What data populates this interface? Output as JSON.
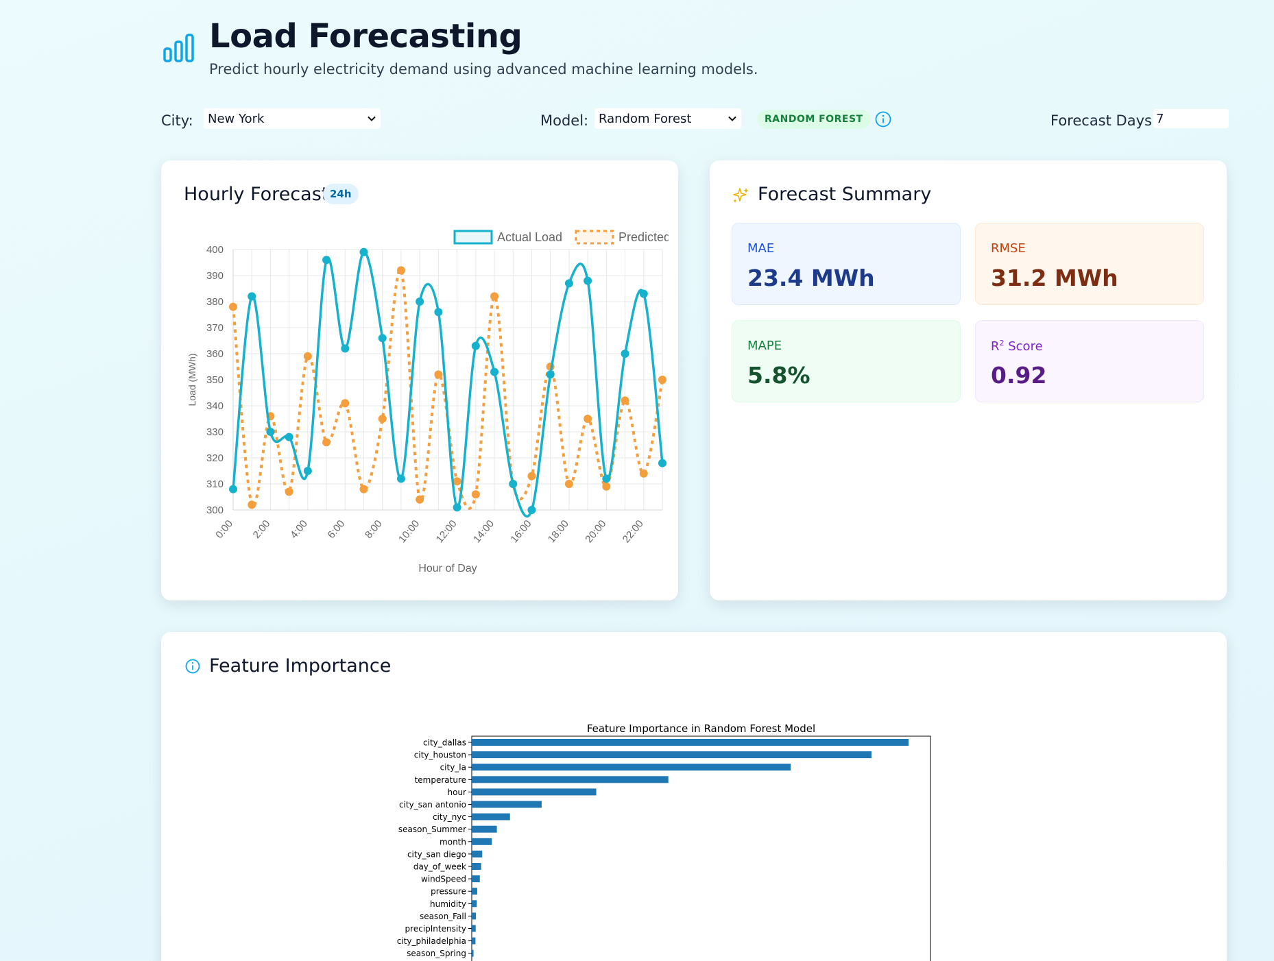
{
  "app": {
    "title": "Load Forecasting",
    "subtitle": "Predict hourly electricity demand using advanced machine learning models."
  },
  "controls": {
    "city_label": "City:",
    "city_value": "New York",
    "model_label": "Model:",
    "model_value": "Random Forest",
    "model_badge": "RANDOM FOREST",
    "days_label": "Forecast Days:",
    "days_value": "7"
  },
  "hourly": {
    "title": "Hourly Forecast",
    "badge": "24h"
  },
  "summary": {
    "title": "Forecast Summary",
    "metrics": [
      {
        "label": "MAE",
        "value": "23.4 MWh"
      },
      {
        "label": "RMSE",
        "value": "31.2 MWh"
      },
      {
        "label": "MAPE",
        "value": "5.8%"
      },
      {
        "label_base": "R",
        "label_sup": "2",
        "label_rest": " Score",
        "value": "0.92"
      }
    ]
  },
  "feature_section": {
    "title": "Feature Importance"
  },
  "colors": {
    "actual": "#16b1cc",
    "predicted": "#f59e3d",
    "bar": "#1f77b4",
    "accent": "#0ea5e9"
  },
  "icons": [
    "bar-chart-logo-icon",
    "chevron-down-icon",
    "info-icon",
    "sparkles-icon",
    "info-circle-icon"
  ],
  "chart_data": [
    {
      "type": "line",
      "legend": [
        "Actual Load",
        "Predicted Load"
      ],
      "legend_position": "top",
      "xlabel": "Hour of Day",
      "ylabel": "Load (MWh)",
      "ylim": [
        300,
        400
      ],
      "yticks": [
        300,
        310,
        320,
        330,
        340,
        350,
        360,
        370,
        380,
        390,
        400
      ],
      "x": [
        "0:00",
        "1:00",
        "2:00",
        "3:00",
        "4:00",
        "5:00",
        "6:00",
        "7:00",
        "8:00",
        "9:00",
        "10:00",
        "11:00",
        "12:00",
        "13:00",
        "14:00",
        "15:00",
        "16:00",
        "17:00",
        "18:00",
        "19:00",
        "20:00",
        "21:00",
        "22:00",
        "23:00"
      ],
      "xtick_labels": [
        "0:00",
        "2:00",
        "4:00",
        "6:00",
        "8:00",
        "10:00",
        "12:00",
        "14:00",
        "16:00",
        "18:00",
        "20:00",
        "22:00"
      ],
      "grid": true,
      "series": [
        {
          "name": "Actual Load",
          "values": [
            308,
            382,
            330,
            328,
            315,
            396,
            362,
            399,
            366,
            312,
            380,
            376,
            301,
            363,
            353,
            310,
            300,
            352,
            387,
            388,
            312,
            360,
            383,
            318
          ]
        },
        {
          "name": "Predicted Load",
          "values": [
            378,
            302,
            336,
            307,
            359,
            326,
            341,
            308,
            335,
            392,
            304,
            352,
            311,
            306,
            382,
            310,
            313,
            355,
            310,
            335,
            309,
            342,
            314,
            350
          ]
        }
      ]
    },
    {
      "type": "bar",
      "orientation": "horizontal",
      "title": "Feature Importance in Random Forest Model",
      "categories": [
        "city_dallas",
        "city_houston",
        "city_la",
        "temperature",
        "hour",
        "city_san antonio",
        "city_nyc",
        "season_Summer",
        "month",
        "city_san diego",
        "day_of_week",
        "windSpeed",
        "pressure",
        "humidity",
        "season_Fall",
        "precipIntensity",
        "city_philadelphia",
        "season_Spring"
      ],
      "values": [
        0.2,
        0.183,
        0.146,
        0.09,
        0.057,
        0.032,
        0.0175,
        0.0115,
        0.0092,
        0.0048,
        0.0043,
        0.0037,
        0.0025,
        0.0023,
        0.0019,
        0.0018,
        0.0017,
        0.0008
      ],
      "xlim": [
        0,
        0.21
      ]
    }
  ]
}
